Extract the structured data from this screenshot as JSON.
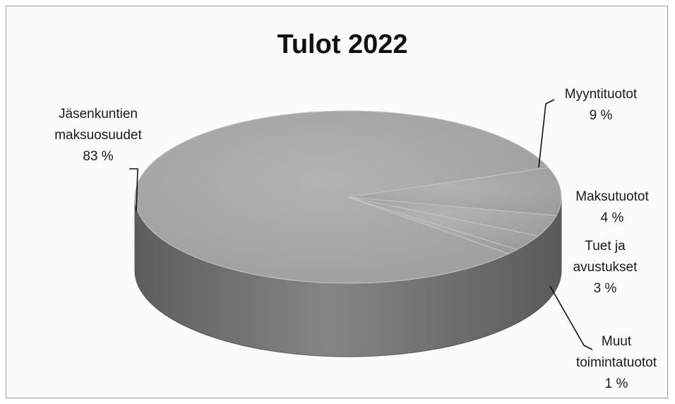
{
  "chart_data": {
    "type": "pie",
    "title": "Tulot 2022",
    "three_d": true,
    "slices": [
      {
        "label": "Myyntituotot",
        "value": 9,
        "value_text": "9 %",
        "label_lines": [
          "Myyntituotot",
          "9 %"
        ]
      },
      {
        "label": "Maksutuotot",
        "value": 4,
        "value_text": "4 %",
        "label_lines": [
          "Maksutuotot",
          "4 %"
        ]
      },
      {
        "label": "Tuet ja avustukset",
        "value": 3,
        "value_text": "3 %",
        "label_lines": [
          "Tuet ja",
          "avustukset",
          "3 %"
        ]
      },
      {
        "label": "Muut toimintatuotot",
        "value": 1,
        "value_text": "1 %",
        "label_lines": [
          "Muut",
          "toimintatuotot",
          "1 %"
        ]
      },
      {
        "label": "Jäsenkuntien maksuosuudet",
        "value": 83,
        "value_text": "83 %",
        "label_lines": [
          "Jäsenkuntien",
          "maksuosuudet",
          "83 %"
        ]
      }
    ],
    "colors": {
      "top_face": "#a6a6a6",
      "side_face": "#6f6f6f",
      "slice_edge": "#c4c4c4",
      "leader_line": "#111111"
    },
    "legend": "none"
  }
}
